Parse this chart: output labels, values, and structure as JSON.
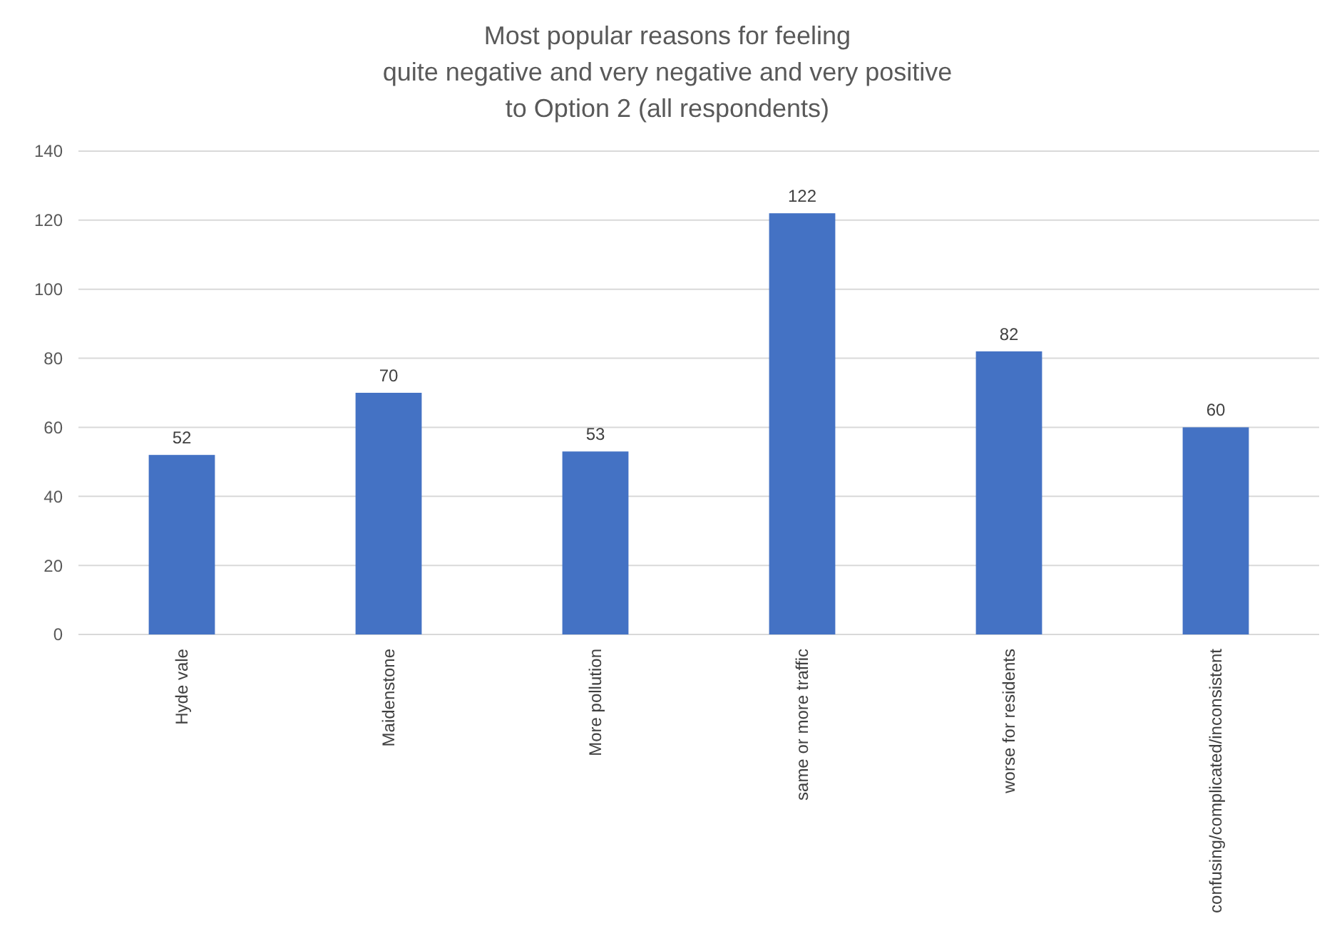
{
  "chart_data": {
    "type": "bar",
    "title": "Most popular reasons for feeling\nquite negative and very negative and very positive\nto Option 2 (all respondents)",
    "categories": [
      "Hyde vale",
      "Maidenstone",
      "More pollution",
      "same or more traffic",
      "worse for residents",
      "confusing/complicated/inconsistent"
    ],
    "values": [
      52,
      70,
      53,
      122,
      82,
      60
    ],
    "color": "#4472c4",
    "ylim": [
      0,
      140
    ],
    "yticks": [
      0,
      20,
      40,
      60,
      80,
      100,
      120,
      140
    ],
    "grid": "y",
    "data_labels": true
  }
}
